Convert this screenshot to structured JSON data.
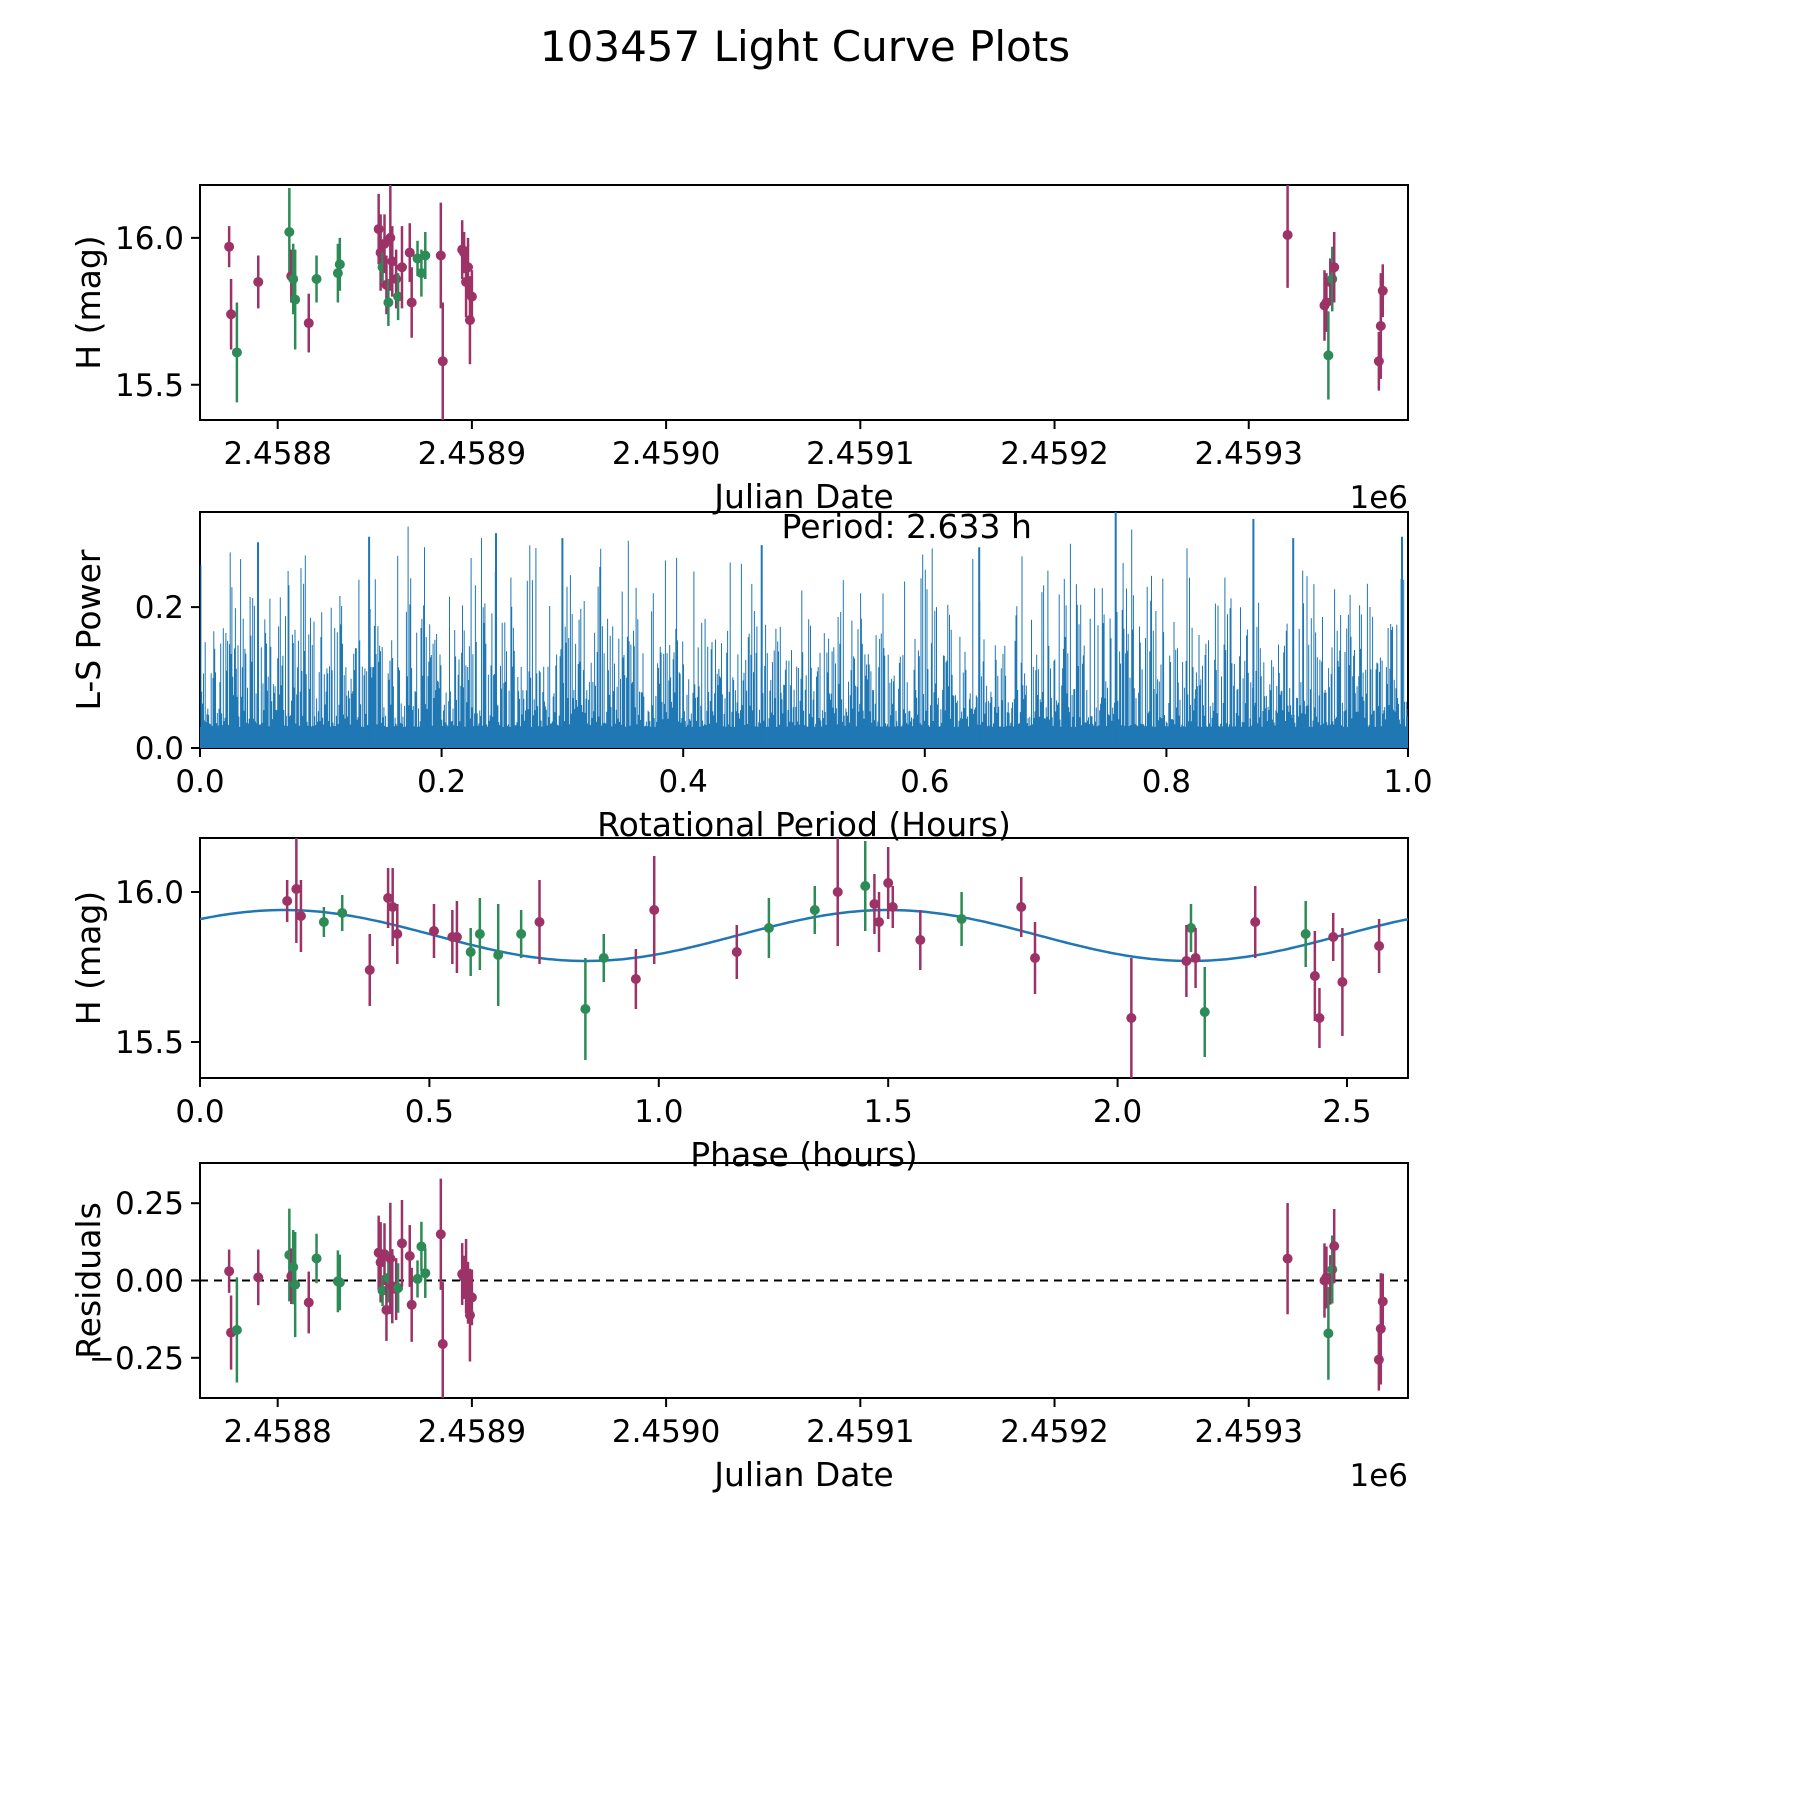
{
  "title": "103457 Light Curve Plots",
  "colors": {
    "series_purple": "#9c3266",
    "series_green": "#2e8b57",
    "model_line": "#1f77b4",
    "periodogram": "#1f77b4",
    "axis": "#000000"
  },
  "model": {
    "period_hours": 2.633,
    "mean_mag": 15.855,
    "amplitude_mag": 0.085,
    "harmonic": 2,
    "phase0_rad": 0.696
  },
  "chart_data": [
    {
      "type": "scatter",
      "id": "light_curve_jd",
      "xlabel": "Julian Date",
      "ylabel": "H (mag)",
      "x_offset_text": "1e6",
      "xlim": [
        2458760,
        2459382
      ],
      "ylim": [
        15.38,
        16.18
      ],
      "xticks": [
        2458800,
        2458900,
        2459000,
        2459100,
        2459200,
        2459300
      ],
      "xtick_labels": [
        "2.4588",
        "2.4589",
        "2.4590",
        "2.4591",
        "2.4592",
        "2.4593"
      ],
      "yticks": [
        15.5,
        16.0
      ],
      "ytick_labels": [
        "15.5",
        "16.0"
      ],
      "points_from": "observations",
      "x_field": "jd",
      "y_field": "mag"
    },
    {
      "type": "periodogram",
      "id": "ls_periodogram",
      "xlabel": "Rotational Period (Hours)",
      "ylabel": "L-S Power",
      "annotation": "Period: 2.633 h",
      "xlim": [
        0,
        1
      ],
      "ylim": [
        0,
        0.335
      ],
      "xticks": [
        0,
        0.2,
        0.4,
        0.6,
        0.8,
        1.0
      ],
      "xtick_labels": [
        "0.0",
        "0.2",
        "0.4",
        "0.6",
        "0.8",
        "1.0"
      ],
      "yticks": [
        0,
        0.2
      ],
      "ytick_labels": [
        "0.0",
        "0.2"
      ],
      "n_frequencies": 1400,
      "seed": 7,
      "noise_base": 0.03,
      "noise_scale": 0.3,
      "notable_peaks": [
        {
          "x": 0.758,
          "power": 0.335
        },
        {
          "x": 0.872,
          "power": 0.325
        },
        {
          "x": 0.905,
          "power": 0.298
        },
        {
          "x": 0.245,
          "power": 0.305
        },
        {
          "x": 0.048,
          "power": 0.292
        },
        {
          "x": 0.14,
          "power": 0.3
        },
        {
          "x": 0.3,
          "power": 0.298
        },
        {
          "x": 0.465,
          "power": 0.288
        },
        {
          "x": 0.645,
          "power": 0.285
        },
        {
          "x": 0.995,
          "power": 0.3
        }
      ]
    },
    {
      "type": "scatter_with_model",
      "id": "phased_light_curve",
      "xlabel": "Phase (hours)",
      "ylabel": "H (mag)",
      "xlim": [
        0,
        2.633
      ],
      "ylim": [
        15.38,
        16.18
      ],
      "xticks": [
        0,
        0.5,
        1.0,
        1.5,
        2.0,
        2.5
      ],
      "xtick_labels": [
        "0.0",
        "0.5",
        "1.0",
        "1.5",
        "2.0",
        "2.5"
      ],
      "yticks": [
        15.5,
        16.0
      ],
      "ytick_labels": [
        "15.5",
        "16.0"
      ],
      "points_from": "observations",
      "x_field": "phase",
      "y_field": "mag"
    },
    {
      "type": "residuals",
      "id": "residuals_jd",
      "xlabel": "Julian Date",
      "ylabel": "Residuals",
      "x_offset_text": "1e6",
      "xlim": [
        2458760,
        2459382
      ],
      "ylim": [
        -0.38,
        0.38
      ],
      "xticks": [
        2458800,
        2458900,
        2459000,
        2459100,
        2459200,
        2459300
      ],
      "xtick_labels": [
        "2.4588",
        "2.4589",
        "2.4590",
        "2.4591",
        "2.4592",
        "2.4593"
      ],
      "yticks": [
        -0.25,
        0,
        0.25
      ],
      "ytick_labels": [
        "−0.25",
        "0.00",
        "0.25"
      ],
      "zero_line": true,
      "points_from": "observations",
      "x_field": "jd"
    }
  ],
  "observations": [
    {
      "jd": 2458775,
      "phase": 0.19,
      "mag": 15.97,
      "err": 0.07,
      "band": "purple"
    },
    {
      "jd": 2458776,
      "phase": 0.37,
      "mag": 15.74,
      "err": 0.12,
      "band": "purple"
    },
    {
      "jd": 2458779,
      "phase": 0.84,
      "mag": 15.61,
      "err": 0.17,
      "band": "green"
    },
    {
      "jd": 2458790,
      "phase": 0.55,
      "mag": 15.85,
      "err": 0.09,
      "band": "purple"
    },
    {
      "jd": 2458806,
      "phase": 1.45,
      "mag": 16.02,
      "err": 0.15,
      "band": "green"
    },
    {
      "jd": 2458807,
      "phase": 0.51,
      "mag": 15.87,
      "err": 0.09,
      "band": "purple"
    },
    {
      "jd": 2458808,
      "phase": 0.61,
      "mag": 15.86,
      "err": 0.12,
      "band": "green"
    },
    {
      "jd": 2458809,
      "phase": 0.65,
      "mag": 15.79,
      "err": 0.17,
      "band": "green"
    },
    {
      "jd": 2458816,
      "phase": 0.95,
      "mag": 15.71,
      "err": 0.1,
      "band": "purple"
    },
    {
      "jd": 2458820,
      "phase": 0.7,
      "mag": 15.86,
      "err": 0.08,
      "band": "green"
    },
    {
      "jd": 2458831,
      "phase": 1.24,
      "mag": 15.88,
      "err": 0.1,
      "band": "green"
    },
    {
      "jd": 2458832,
      "phase": 1.66,
      "mag": 15.91,
      "err": 0.09,
      "band": "green"
    },
    {
      "jd": 2458852,
      "phase": 1.5,
      "mag": 16.03,
      "err": 0.12,
      "band": "purple"
    },
    {
      "jd": 2458853,
      "phase": 0.42,
      "mag": 15.95,
      "err": 0.13,
      "band": "purple"
    },
    {
      "jd": 2458854,
      "phase": 0.27,
      "mag": 15.9,
      "err": 0.05,
      "band": "green"
    },
    {
      "jd": 2458855,
      "phase": 0.41,
      "mag": 15.98,
      "err": 0.1,
      "band": "purple"
    },
    {
      "jd": 2458856,
      "phase": 1.57,
      "mag": 15.84,
      "err": 0.1,
      "band": "purple"
    },
    {
      "jd": 2458857,
      "phase": 0.88,
      "mag": 15.78,
      "err": 0.08,
      "band": "green"
    },
    {
      "jd": 2458858,
      "phase": 1.39,
      "mag": 16.0,
      "err": 0.18,
      "band": "purple"
    },
    {
      "jd": 2458859,
      "phase": 0.22,
      "mag": 15.92,
      "err": 0.12,
      "band": "purple"
    },
    {
      "jd": 2458861,
      "phase": 0.43,
      "mag": 15.86,
      "err": 0.1,
      "band": "purple"
    },
    {
      "jd": 2458862,
      "phase": 0.59,
      "mag": 15.8,
      "err": 0.08,
      "band": "green"
    },
    {
      "jd": 2458864,
      "phase": 0.74,
      "mag": 15.9,
      "err": 0.14,
      "band": "purple"
    },
    {
      "jd": 2458868,
      "phase": 1.79,
      "mag": 15.95,
      "err": 0.1,
      "band": "purple"
    },
    {
      "jd": 2458869,
      "phase": 1.82,
      "mag": 15.78,
      "err": 0.12,
      "band": "purple"
    },
    {
      "jd": 2458872,
      "phase": 0.31,
      "mag": 15.93,
      "err": 0.06,
      "band": "green"
    },
    {
      "jd": 2458874,
      "phase": 2.16,
      "mag": 15.88,
      "err": 0.08,
      "band": "green"
    },
    {
      "jd": 2458876,
      "phase": 1.34,
      "mag": 15.94,
      "err": 0.08,
      "band": "green"
    },
    {
      "jd": 2458884,
      "phase": 0.99,
      "mag": 15.94,
      "err": 0.18,
      "band": "purple"
    },
    {
      "jd": 2458885,
      "phase": 2.03,
      "mag": 15.58,
      "err": 0.2,
      "band": "purple"
    },
    {
      "jd": 2458895,
      "phase": 1.47,
      "mag": 15.96,
      "err": 0.1,
      "band": "purple"
    },
    {
      "jd": 2458896,
      "phase": 1.51,
      "mag": 15.95,
      "err": 0.07,
      "band": "purple"
    },
    {
      "jd": 2458897,
      "phase": 0.56,
      "mag": 15.85,
      "err": 0.12,
      "band": "purple"
    },
    {
      "jd": 2458898,
      "phase": 1.48,
      "mag": 15.9,
      "err": 0.1,
      "band": "purple"
    },
    {
      "jd": 2458899,
      "phase": 2.43,
      "mag": 15.72,
      "err": 0.15,
      "band": "purple"
    },
    {
      "jd": 2458900,
      "phase": 1.17,
      "mag": 15.8,
      "err": 0.09,
      "band": "purple"
    },
    {
      "jd": 2459320,
      "phase": 0.21,
      "mag": 16.01,
      "err": 0.18,
      "band": "purple"
    },
    {
      "jd": 2459339,
      "phase": 2.15,
      "mag": 15.77,
      "err": 0.12,
      "band": "purple"
    },
    {
      "jd": 2459340,
      "phase": 2.17,
      "mag": 15.78,
      "err": 0.1,
      "band": "purple"
    },
    {
      "jd": 2459341,
      "phase": 2.19,
      "mag": 15.6,
      "err": 0.15,
      "band": "green"
    },
    {
      "jd": 2459342,
      "phase": 2.47,
      "mag": 15.85,
      "err": 0.08,
      "band": "purple"
    },
    {
      "jd": 2459343,
      "phase": 2.41,
      "mag": 15.86,
      "err": 0.11,
      "band": "green"
    },
    {
      "jd": 2459344,
      "phase": 2.3,
      "mag": 15.9,
      "err": 0.12,
      "band": "purple"
    },
    {
      "jd": 2459367,
      "phase": 2.44,
      "mag": 15.58,
      "err": 0.1,
      "band": "purple"
    },
    {
      "jd": 2459368,
      "phase": 2.49,
      "mag": 15.7,
      "err": 0.18,
      "band": "purple"
    },
    {
      "jd": 2459369,
      "phase": 2.57,
      "mag": 15.82,
      "err": 0.09,
      "band": "purple"
    }
  ]
}
